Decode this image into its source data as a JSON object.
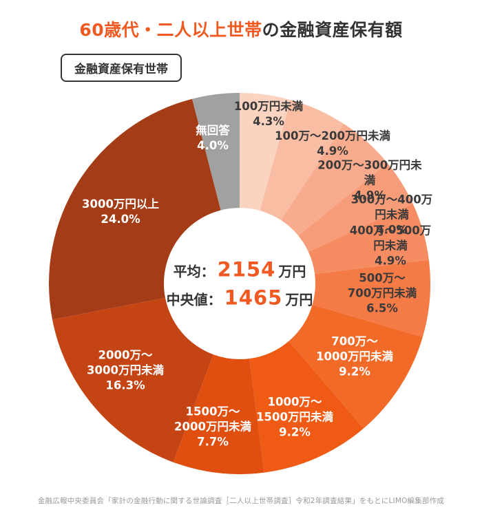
{
  "header": {
    "title_highlight": "60歳代・二人以上世帯",
    "title_rest": "の金融資産保有額",
    "badge": "金融資産保有世帯"
  },
  "center": {
    "average_label": "平均：",
    "average_value": "2154",
    "average_unit": "万円",
    "median_label": "中央値：",
    "median_value": "1465",
    "median_unit": "万円"
  },
  "footer": {
    "source": "金融広報中央委員会「家計の金融行動に関する世論調査［二人以上世帯調査］令和2年調査結果」をもとにLIMO編集部作成"
  },
  "colors": {
    "accent": "#F05A22",
    "text_dark": "#333333",
    "no_answer_gray": "#A1A1A1"
  },
  "chart_data": {
    "type": "pie",
    "title": "60歳代・二人以上世帯の金融資産保有額（金融資産保有世帯）",
    "unit": "%",
    "donut": true,
    "start_angle_deg": 0,
    "direction": "clockwise",
    "slices": [
      {
        "label_lines": [
          "100万円未満"
        ],
        "value": 4.3,
        "value_label": "4.3%",
        "color": "#FAD3C1",
        "label_text_color": "#3A3A3A"
      },
      {
        "label_lines": [
          "100万〜200万円未満"
        ],
        "value": 4.9,
        "value_label": "4.9%",
        "color": "#F9BDA4",
        "label_text_color": "#3A3A3A"
      },
      {
        "label_lines": [
          "200万〜300万円未満"
        ],
        "value": 4.9,
        "value_label": "4.9%",
        "color": "#F8AB8D",
        "label_text_color": "#3A3A3A"
      },
      {
        "label_lines": [
          "300万〜400万円未満"
        ],
        "value": 4.0,
        "value_label": "4.0%",
        "color": "#F69C78",
        "label_text_color": "#3A3A3A"
      },
      {
        "label_lines": [
          "400万〜500万円未満"
        ],
        "value": 4.9,
        "value_label": "4.9%",
        "color": "#F58C62",
        "label_text_color": "#3A3A3A"
      },
      {
        "label_lines": [
          "500万〜",
          "700万円未満"
        ],
        "value": 6.5,
        "value_label": "6.5%",
        "color": "#F47A46",
        "label_text_color": "#3A3A3A"
      },
      {
        "label_lines": [
          "700万〜",
          "1000万円未満"
        ],
        "value": 9.2,
        "value_label": "9.2%",
        "color": "#F26A28",
        "label_text_color": "#FFFFFF"
      },
      {
        "label_lines": [
          "1000万〜",
          "1500万円未満"
        ],
        "value": 9.2,
        "value_label": "9.2%",
        "color": "#EF5A14",
        "label_text_color": "#FFFFFF"
      },
      {
        "label_lines": [
          "1500万〜",
          "2000万円未満"
        ],
        "value": 7.7,
        "value_label": "7.7%",
        "color": "#E04E10",
        "label_text_color": "#FFFFFF"
      },
      {
        "label_lines": [
          "2000万〜",
          "3000万円未満"
        ],
        "value": 16.3,
        "value_label": "16.3%",
        "color": "#C44414",
        "label_text_color": "#FFFFFF"
      },
      {
        "label_lines": [
          "3000万円以上"
        ],
        "value": 24.0,
        "value_label": "24.0%",
        "color": "#A43D17",
        "label_text_color": "#FFFFFF"
      },
      {
        "label_lines": [
          "無回答"
        ],
        "value": 4.0,
        "value_label": "4.0%",
        "color": "#A1A1A1",
        "label_text_color": "#FFFFFF"
      }
    ],
    "center_annotations": [
      "平均：2154万円",
      "中央値：1465万円"
    ]
  }
}
